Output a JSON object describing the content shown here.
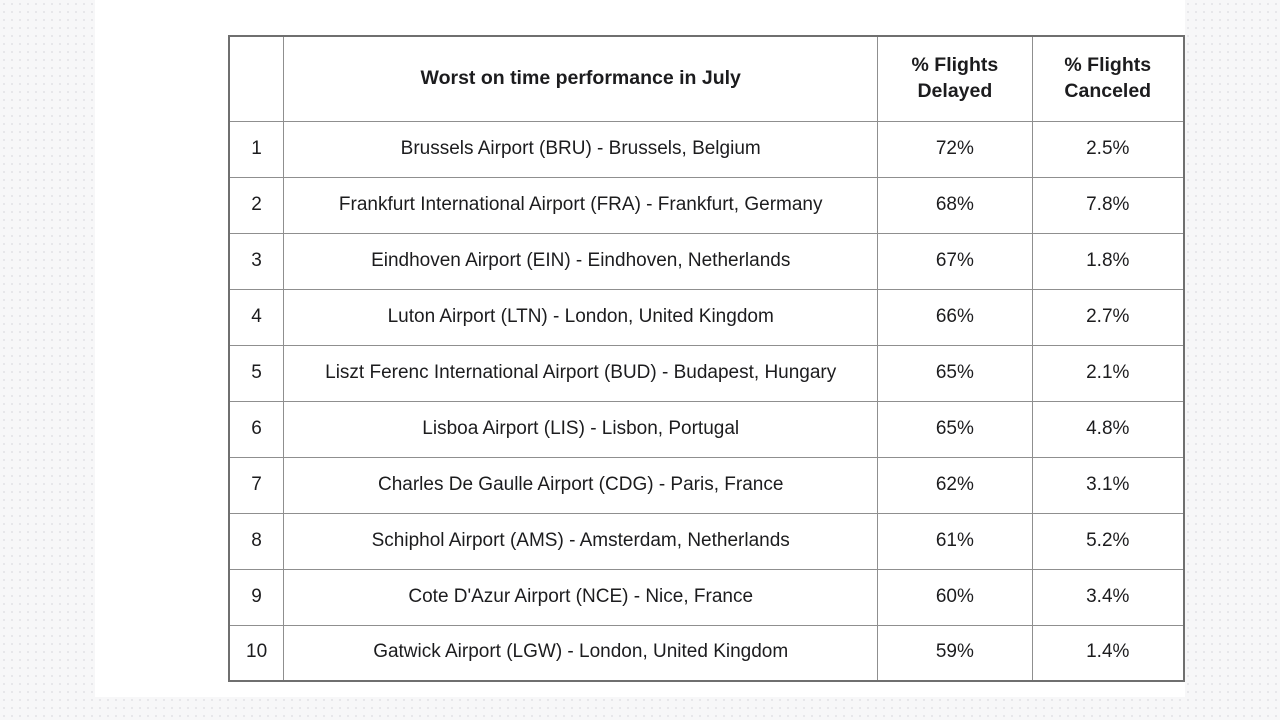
{
  "colors": {
    "page_background": "#f7f7f8",
    "dot_pattern": "#e2e2e6",
    "card_background": "#ffffff",
    "table_border": "#8f8f8f",
    "table_outer_border": "#6f6f6f",
    "text": "#1c1c1e"
  },
  "table": {
    "header": {
      "rank": "",
      "title": "Worst on time performance in July",
      "delayed": "% Flights\nDelayed",
      "canceled": "% Flights\nCanceled"
    },
    "rows": [
      {
        "rank": "1",
        "name": "Brussels Airport (BRU) - Brussels, Belgium",
        "delayed": "72%",
        "canceled": "2.5%"
      },
      {
        "rank": "2",
        "name": "Frankfurt International Airport (FRA) - Frankfurt, Germany",
        "delayed": "68%",
        "canceled": "7.8%"
      },
      {
        "rank": "3",
        "name": "Eindhoven Airport (EIN) - Eindhoven, Netherlands",
        "delayed": "67%",
        "canceled": "1.8%"
      },
      {
        "rank": "4",
        "name": "Luton Airport (LTN) - London, United Kingdom",
        "delayed": "66%",
        "canceled": "2.7%"
      },
      {
        "rank": "5",
        "name": "Liszt Ferenc International Airport (BUD) - Budapest, Hungary",
        "delayed": "65%",
        "canceled": "2.1%"
      },
      {
        "rank": "6",
        "name": "Lisboa Airport (LIS) - Lisbon, Portugal",
        "delayed": "65%",
        "canceled": "4.8%"
      },
      {
        "rank": "7",
        "name": "Charles De Gaulle Airport (CDG) - Paris, France",
        "delayed": "62%",
        "canceled": "3.1%"
      },
      {
        "rank": "8",
        "name": "Schiphol Airport (AMS) - Amsterdam, Netherlands",
        "delayed": "61%",
        "canceled": "5.2%"
      },
      {
        "rank": "9",
        "name": "Cote D'Azur Airport (NCE) - Nice, France",
        "delayed": "60%",
        "canceled": "3.4%"
      },
      {
        "rank": "10",
        "name": "Gatwick Airport (LGW) - London, United Kingdom",
        "delayed": "59%",
        "canceled": "1.4%"
      }
    ]
  }
}
